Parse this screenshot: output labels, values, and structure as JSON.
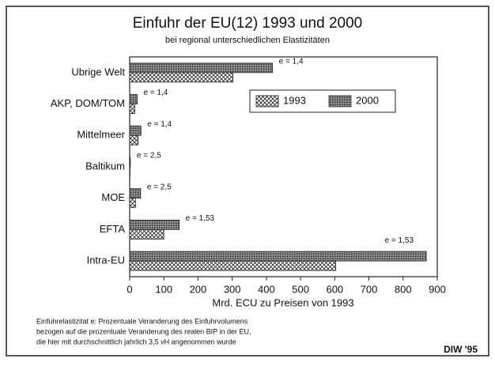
{
  "chart_data": {
    "type": "hbar",
    "title": "Einfuhr der EU(12) 1993 und 2000",
    "subtitle": "bei regional unterschiedlichen Elastizitäten",
    "x_label": "Mrd. ECU zu Preisen von 1993",
    "categories": [
      "Ubrige Welt",
      "AKP, DOM/TOM",
      "Mittelmeer",
      "Baltikum",
      "MOE",
      "EFTA",
      "Intra-EU"
    ],
    "series": [
      {
        "name": "2000",
        "color": "#555555",
        "values": [
          418,
          22,
          33,
          2,
          32,
          145,
          868
        ]
      },
      {
        "name": "1993",
        "color": "#ffffff",
        "values": [
          302,
          15,
          25,
          1,
          17,
          100,
          603
        ]
      }
    ],
    "annotations": [
      "e = 1,4",
      "e = 1,4",
      "e = 1,4",
      "e = 2,5",
      "e = 2,5",
      "e = 1,53",
      "e = 1,53"
    ],
    "xlim": [
      0,
      900
    ],
    "xticks": [
      0,
      100,
      200,
      300,
      400,
      500,
      600,
      700,
      800,
      900
    ],
    "legend": "upper right",
    "footnote": [
      "Einfuhrelastizitat e: Prozentuale Veranderung des Einfuhrvolumens",
      "bezogen auf die prozentuale Veranderung des realen BIP in der EU,",
      "die hier mit durchschnittlich jahrlich 3,5 vH angenommen wurde"
    ],
    "source": "DIW '95"
  }
}
